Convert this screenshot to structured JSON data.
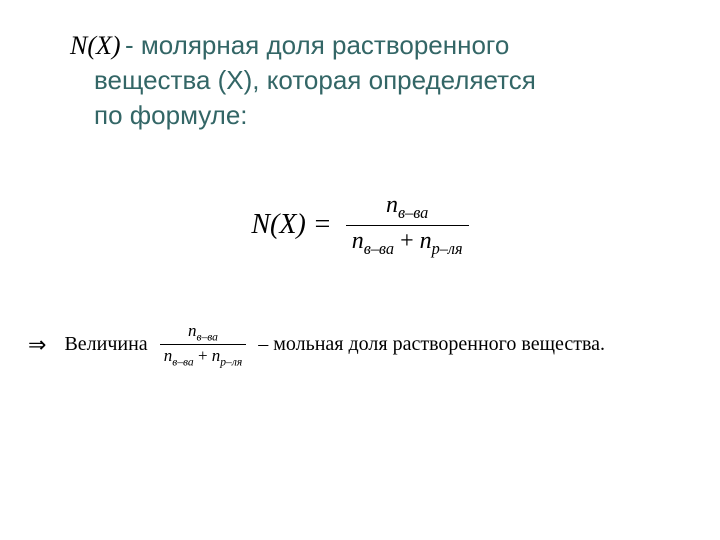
{
  "colors": {
    "background": "#ffffff",
    "heading": "#336666",
    "text": "#000000",
    "rule": "#000000"
  },
  "typography": {
    "heading_font": "Arial",
    "heading_size_pt": 20,
    "math_font": "Times New Roman",
    "math_size_pt": 21,
    "bullet_size_pt": 15
  },
  "symbol": {
    "nx": "N(X)"
  },
  "definition": {
    "line1_after_symbol": "- молярная доля растворенного",
    "line2": "вещества (Х), которая определяется",
    "line3": "по формуле:"
  },
  "formula": {
    "lhs": "N(X) =",
    "numerator_base": "n",
    "numerator_sub": "в–ва",
    "denom_left_base": "n",
    "denom_left_sub": "в–ва",
    "denom_plus": "+",
    "denom_right_base": "n",
    "denom_right_sub": "р–ля"
  },
  "bullet": {
    "arrow": "⇒",
    "left_text": "Величина",
    "frac_num_base": "n",
    "frac_num_sub": "в–ва",
    "frac_den_left_base": "n",
    "frac_den_left_sub": "в–ва",
    "frac_den_plus": "+",
    "frac_den_right_base": "n",
    "frac_den_right_sub": "р–ля",
    "right_text": " – мольная доля растворенного вещества."
  }
}
